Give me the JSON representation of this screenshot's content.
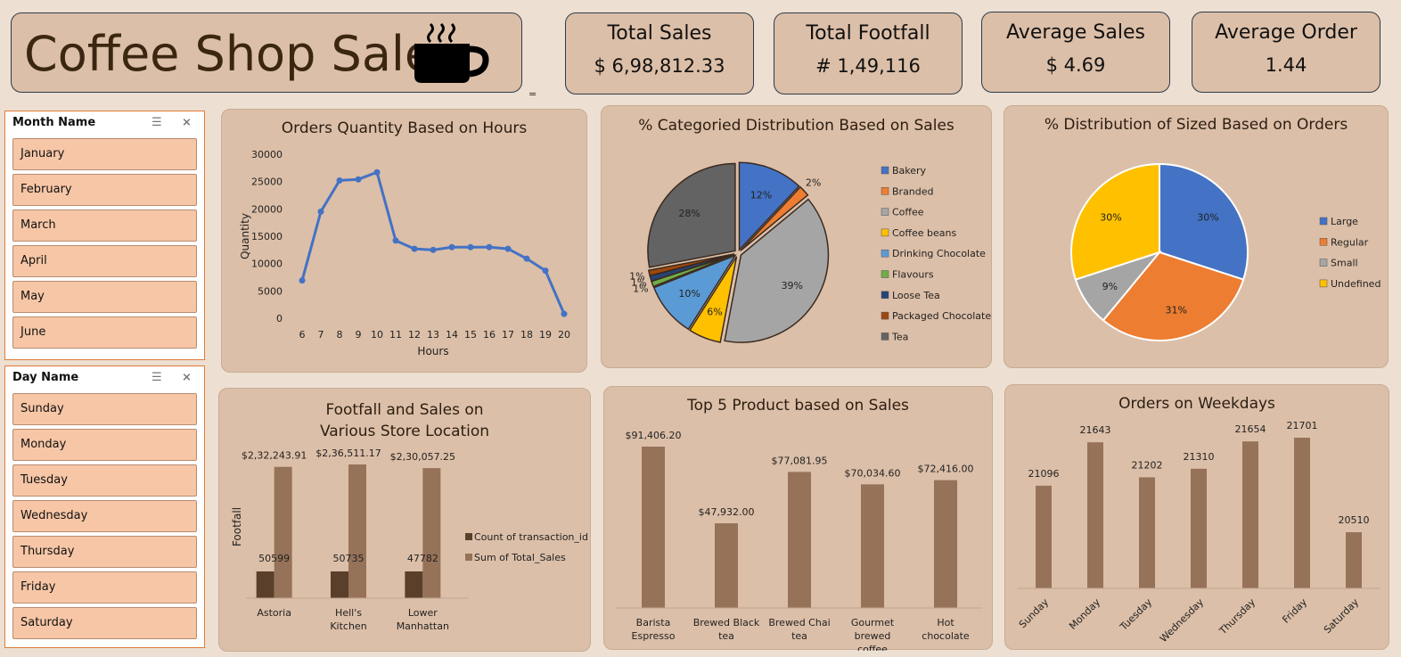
{
  "title": "Coffee Shop Sales",
  "kpis": [
    {
      "title": "Total Sales",
      "value": "$ 6,98,812.33"
    },
    {
      "title": "Total Footfall",
      "value": "# 1,49,116"
    },
    {
      "title": "Average Sales",
      "value": "$ 4.69"
    },
    {
      "title": "Average Order",
      "value": "1.44"
    }
  ],
  "stray_mark": "=",
  "month_slicer": {
    "label": "Month Name",
    "items": [
      "January",
      "February",
      "March",
      "April",
      "May",
      "June"
    ]
  },
  "day_slicer": {
    "label": "Day Name",
    "items": [
      "Sunday",
      "Monday",
      "Tuesday",
      "Wednesday",
      "Thursday",
      "Friday",
      "Saturday"
    ]
  },
  "colors": {
    "brown_dark": "#5a3f2a",
    "brown": "#967259",
    "line": "#4472c4"
  },
  "chart_data": [
    {
      "id": "hours",
      "type": "line",
      "title": "Orders Quantity Based on Hours",
      "xlabel": "Hours",
      "ylabel": "Quantity",
      "x": [
        6,
        7,
        8,
        9,
        10,
        11,
        12,
        13,
        14,
        15,
        16,
        17,
        18,
        19,
        20
      ],
      "values": [
        6900,
        19500,
        25200,
        25400,
        26700,
        14200,
        12700,
        12500,
        13000,
        13000,
        13000,
        12700,
        10900,
        8700,
        800
      ],
      "yticks": [
        0,
        5000,
        10000,
        15000,
        20000,
        25000,
        30000
      ],
      "ylim": [
        0,
        30000
      ]
    },
    {
      "id": "category",
      "type": "pie",
      "title": "% Categoried Distribution Based on Sales",
      "legend": "right",
      "slices": [
        {
          "label": "Bakery",
          "value": 12,
          "text": "12%",
          "color": "#4472c4"
        },
        {
          "label": "Branded",
          "value": 2,
          "text": "2%",
          "color": "#ed7d31"
        },
        {
          "label": "Coffee",
          "value": 39,
          "text": "39%",
          "color": "#a5a5a5"
        },
        {
          "label": "Coffee beans",
          "value": 6,
          "text": "6%",
          "color": "#ffc000"
        },
        {
          "label": "Drinking Chocolate",
          "value": 10,
          "text": "10%",
          "color": "#5b9bd5"
        },
        {
          "label": "Flavours",
          "value": 1,
          "text": "1%",
          "color": "#70ad47"
        },
        {
          "label": "Loose Tea",
          "value": 1,
          "text": "1%",
          "color": "#264478"
        },
        {
          "label": "Packaged Chocolate",
          "value": 1,
          "text": "1%",
          "color": "#9e480e"
        },
        {
          "label": "Tea",
          "value": 28,
          "text": "28%",
          "color": "#636363"
        }
      ]
    },
    {
      "id": "size",
      "type": "pie",
      "title": "% Distribution of Sized Based on Orders",
      "legend": "right",
      "slices": [
        {
          "label": "Large",
          "value": 30,
          "text": "30%",
          "color": "#4472c4"
        },
        {
          "label": "Regular",
          "value": 31,
          "text": "31%",
          "color": "#ed7d31"
        },
        {
          "label": "Small",
          "value": 9,
          "text": "9%",
          "color": "#a5a5a5"
        },
        {
          "label": "Undefined",
          "value": 30,
          "text": "30%",
          "color": "#ffc000"
        }
      ]
    },
    {
      "id": "store",
      "type": "bar",
      "title": "Footfall and Sales on Various Store Location",
      "ylabel": "Footfall",
      "legend": "right",
      "categories": [
        "Astoria",
        "Hell's Kitchen",
        "Lower Manhattan"
      ],
      "series": [
        {
          "name": "Count of transaction_id",
          "values": [
            50599,
            50735,
            47782
          ],
          "labels": [
            "50599",
            "50735",
            "47782"
          ]
        },
        {
          "name": "Sum of Total_Sales",
          "values": [
            232243.91,
            236511.17,
            230057.25
          ],
          "labels": [
            "$2,32,243.91",
            "$2,36,511.17",
            "$2,30,057.25"
          ]
        }
      ]
    },
    {
      "id": "top5",
      "type": "bar",
      "title": "Top 5 Product based on Sales",
      "categories": [
        "Barista Espresso",
        "Brewed Black tea",
        "Brewed Chai tea",
        "Gourmet brewed coffee",
        "Hot chocolate"
      ],
      "values": [
        91406.2,
        47932.0,
        77081.95,
        70034.6,
        72416.0
      ],
      "labels": [
        "$91,406.20",
        "$47,932.00",
        "$77,081.95",
        "$70,034.60",
        "$72,416.00"
      ]
    },
    {
      "id": "weekday",
      "type": "bar",
      "title": "Orders on Weekdays",
      "categories": [
        "Sunday",
        "Monday",
        "Tuesday",
        "Wednesday",
        "Thursday",
        "Friday",
        "Saturday"
      ],
      "values": [
        21096,
        21643,
        21202,
        21310,
        21654,
        21701,
        20510
      ],
      "labels": [
        "21096",
        "21643",
        "21202",
        "21310",
        "21654",
        "21701",
        "20510"
      ]
    }
  ]
}
